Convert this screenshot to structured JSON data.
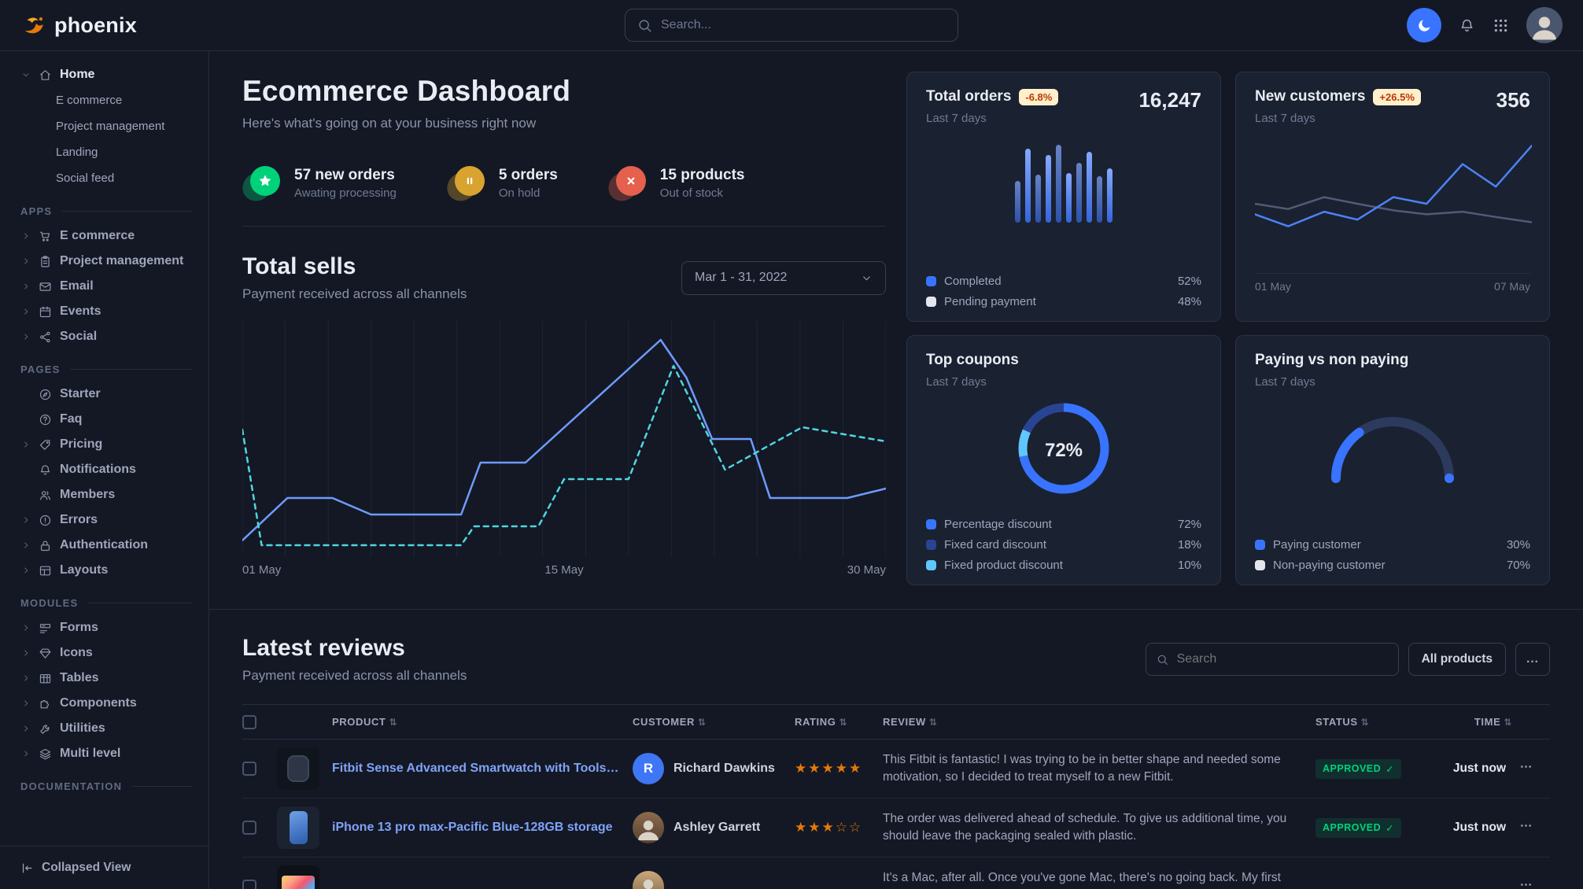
{
  "colors": {
    "primary": "#3874ff",
    "success": "#00d27a",
    "warning": "#e5780b",
    "danger": "#e5604d",
    "cyan": "#60c6ff",
    "navy": "#2a4494",
    "gray_line": "#525b75",
    "white_swatch": "#e3e6ed"
  },
  "navbar": {
    "brand": "phoenix",
    "search_placeholder": "Search..."
  },
  "sidebar": {
    "sections": [
      {
        "label": "",
        "items": [
          {
            "label": "Home",
            "icon": "home",
            "children": [
              "E commerce",
              "Project management",
              "Landing",
              "Social feed"
            ]
          }
        ]
      },
      {
        "label": "APPS",
        "items": [
          {
            "label": "E commerce",
            "icon": "cart",
            "caret": true
          },
          {
            "label": "Project management",
            "icon": "clipboard",
            "caret": true
          },
          {
            "label": "Email",
            "icon": "mail",
            "caret": true
          },
          {
            "label": "Events",
            "icon": "calendar",
            "caret": true
          },
          {
            "label": "Social",
            "icon": "share",
            "caret": true
          }
        ]
      },
      {
        "label": "PAGES",
        "items": [
          {
            "label": "Starter",
            "icon": "compass"
          },
          {
            "label": "Faq",
            "icon": "faq"
          },
          {
            "label": "Pricing",
            "icon": "tag",
            "caret": true
          },
          {
            "label": "Notifications",
            "icon": "bell"
          },
          {
            "label": "Members",
            "icon": "users"
          },
          {
            "label": "Errors",
            "icon": "error",
            "caret": true
          },
          {
            "label": "Authentication",
            "icon": "lock",
            "caret": true
          },
          {
            "label": "Layouts",
            "icon": "layout",
            "caret": true
          }
        ]
      },
      {
        "label": "MODULES",
        "items": [
          {
            "label": "Forms",
            "icon": "form",
            "caret": true
          },
          {
            "label": "Icons",
            "icon": "gem",
            "caret": true
          },
          {
            "label": "Tables",
            "icon": "table",
            "caret": true
          },
          {
            "label": "Components",
            "icon": "puzzle",
            "caret": true
          },
          {
            "label": "Utilities",
            "icon": "wrench",
            "caret": true
          },
          {
            "label": "Multi level",
            "icon": "layers",
            "caret": true
          }
        ]
      },
      {
        "label": "DOCUMENTATION",
        "items": []
      }
    ],
    "footer": {
      "label": "Collapsed View"
    }
  },
  "dashboard": {
    "title": "Ecommerce Dashboard",
    "subtitle": "Here's what's going on at your business right now",
    "stats": [
      {
        "value": "57 new orders",
        "caption": "Awating processing",
        "icon": "star",
        "color": "#00d27a"
      },
      {
        "value": "5 orders",
        "caption": "On hold",
        "icon": "pause",
        "color": "#d9a330"
      },
      {
        "value": "15 products",
        "caption": "Out of stock",
        "icon": "x",
        "color": "#e5604d"
      }
    ]
  },
  "total_sells": {
    "title": "Total sells",
    "subtitle": "Payment received across all channels",
    "date_range": "Mar 1 - 31, 2022",
    "x_labels": [
      "01 May",
      "15 May",
      "30 May"
    ],
    "chart": {
      "type": "line",
      "unit": "percent_of_plot",
      "series": [
        {
          "name": "solid",
          "color": "#6e9bff",
          "dash": false,
          "points": [
            [
              0,
              7
            ],
            [
              7,
              25
            ],
            [
              14,
              25
            ],
            [
              20,
              18
            ],
            [
              34,
              18
            ],
            [
              37,
              40
            ],
            [
              44,
              40
            ],
            [
              65,
              92
            ],
            [
              69,
              76
            ],
            [
              73,
              50
            ],
            [
              79,
              50
            ],
            [
              82,
              25
            ],
            [
              94,
              25
            ],
            [
              100,
              29
            ]
          ]
        },
        {
          "name": "dashed",
          "color": "#4dd6e0",
          "dash": true,
          "points": [
            [
              0,
              54
            ],
            [
              3,
              5
            ],
            [
              34,
              5
            ],
            [
              36,
              13
            ],
            [
              46,
              13
            ],
            [
              50,
              33
            ],
            [
              60,
              33
            ],
            [
              67,
              81
            ],
            [
              75,
              37
            ],
            [
              87,
              55
            ],
            [
              100,
              49
            ]
          ]
        }
      ]
    }
  },
  "cards": {
    "total_orders": {
      "title": "Total orders",
      "badge": "-6.8%",
      "period": "Last 7 days",
      "value": "16,247",
      "chart": {
        "type": "bar",
        "values": [
          52,
          92,
          60,
          84,
          97,
          62,
          75,
          88,
          58,
          68
        ]
      },
      "legend": [
        {
          "label": "Completed",
          "value": "52%",
          "color": "#3874ff"
        },
        {
          "label": "Pending payment",
          "value": "48%",
          "color": "#e3e6ed"
        }
      ]
    },
    "new_customers": {
      "title": "New customers",
      "badge": "+26.5%",
      "period": "Last 7 days",
      "value": "356",
      "x_labels": [
        "01 May",
        "07 May"
      ],
      "chart": {
        "type": "line",
        "series": [
          {
            "name": "previous",
            "color": "#525b75",
            "dash": false,
            "points": [
              [
                0,
                50
              ],
              [
                12,
                46
              ],
              [
                25,
                55
              ],
              [
                37,
                50
              ],
              [
                50,
                45
              ],
              [
                62,
                42
              ],
              [
                75,
                44
              ],
              [
                87,
                40
              ],
              [
                100,
                36
              ]
            ]
          },
          {
            "name": "current",
            "color": "#4c82f7",
            "dash": false,
            "points": [
              [
                0,
                42
              ],
              [
                12,
                33
              ],
              [
                25,
                44
              ],
              [
                37,
                38
              ],
              [
                50,
                55
              ],
              [
                62,
                50
              ],
              [
                75,
                80
              ],
              [
                87,
                63
              ],
              [
                100,
                94
              ]
            ]
          }
        ]
      }
    },
    "top_coupons": {
      "title": "Top coupons",
      "period": "Last 7 days",
      "center_label": "72%",
      "chart": {
        "type": "donut",
        "segments": [
          {
            "label": "Percentage discount",
            "value": 72,
            "color": "#3874ff"
          },
          {
            "label": "Fixed card discount",
            "value": 18,
            "color": "#2a4494"
          },
          {
            "label": "Fixed product discount",
            "value": 10,
            "color": "#60c6ff"
          }
        ]
      },
      "legend": [
        {
          "label": "Percentage discount",
          "value": "72%",
          "color": "#3874ff"
        },
        {
          "label": "Fixed card discount",
          "value": "18%",
          "color": "#2a4494"
        },
        {
          "label": "Fixed product discount",
          "value": "10%",
          "color": "#60c6ff"
        }
      ]
    },
    "paying_vs_non_paying": {
      "title": "Paying vs non paying",
      "period": "Last 7 days",
      "chart": {
        "type": "gauge",
        "value": 30,
        "max": 100,
        "color": "#3874ff",
        "track": "#2c3a5e"
      },
      "legend": [
        {
          "label": "Paying customer",
          "value": "30%",
          "color": "#3874ff"
        },
        {
          "label": "Non-paying customer",
          "value": "70%",
          "color": "#e3e6ed"
        }
      ]
    }
  },
  "reviews": {
    "title": "Latest reviews",
    "subtitle": "Payment received across all channels",
    "search_placeholder": "Search",
    "filter_button": "All products",
    "more_button": "...",
    "columns": [
      "PRODUCT",
      "CUSTOMER",
      "RATING",
      "REVIEW",
      "STATUS",
      "TIME"
    ],
    "rows": [
      {
        "product": "Fitbit Sense Advanced Smartwatch with Tools fo...",
        "thumb": "smartwatch",
        "customer": "Richard Dawkins",
        "avatar_initial": "R",
        "rating": 5,
        "review": "This Fitbit is fantastic! I was trying to be in better shape and needed some motivation, so I decided to treat myself to a new Fitbit.",
        "status": "APPROVED",
        "time": "Just now"
      },
      {
        "product": "iPhone 13 pro max-Pacific Blue-128GB storage",
        "thumb": "iphone",
        "customer": "Ashley Garrett",
        "avatar_initial": null,
        "rating": 3,
        "review": "The order was delivered ahead of schedule. To give us additional time, you should leave the packaging sealed with plastic.",
        "status": "APPROVED",
        "time": "Just now"
      },
      {
        "product": "",
        "thumb": "macbook",
        "customer": "",
        "avatar_initial": null,
        "rating": null,
        "review": "It's a Mac, after all. Once you've gone Mac, there's no going back. My first Mac lasted",
        "status": "",
        "time": ""
      }
    ]
  }
}
